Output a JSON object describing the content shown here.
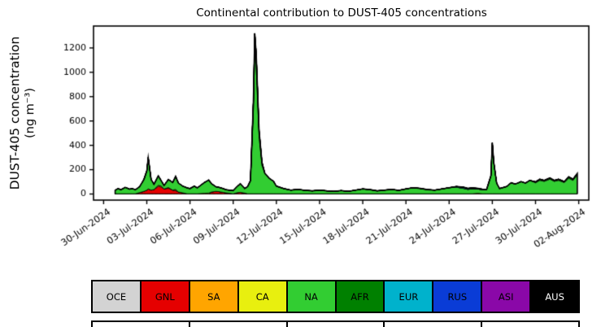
{
  "chart_data": {
    "type": "area",
    "stacked": true,
    "title": "Continental contribution to DUST-405 concentrations",
    "ylabel_line1": "DUST-405 concentration",
    "ylabel_line2": "(ng m⁻³)",
    "ylabel": "DUST-405 concentration (ng m⁻³)",
    "xlabel": "",
    "legend_position": "bottom",
    "grid": false,
    "outline_color": "#000000",
    "x_unit": "days since 30-Jun-2024",
    "xlim": [
      -0.7,
      33.7
    ],
    "ylim": [
      -50,
      1380
    ],
    "yticks": [
      0,
      200,
      400,
      600,
      800,
      1000,
      1200
    ],
    "xticks": [
      0,
      3,
      6,
      9,
      12,
      15,
      18,
      21,
      24,
      27,
      30,
      33
    ],
    "xticklabels": [
      "30-Jun-2024",
      "03-Jul-2024",
      "06-Jul-2024",
      "09-Jul-2024",
      "12-Jul-2024",
      "15-Jul-2024",
      "18-Jul-2024",
      "21-Jul-2024",
      "24-Jul-2024",
      "27-Jul-2024",
      "30-Jul-2024",
      "02-Aug-2024"
    ],
    "x": [
      0.8,
      1,
      1.2,
      1.5,
      1.8,
      2,
      2.2,
      2.5,
      2.8,
      3,
      3.1,
      3.3,
      3.5,
      3.8,
      4,
      4.2,
      4.5,
      4.8,
      5,
      5.2,
      5.5,
      5.8,
      6,
      6.3,
      6.5,
      7,
      7.3,
      7.5,
      7.8,
      8,
      8.3,
      8.5,
      9,
      9.3,
      9.5,
      9.8,
      10,
      10.2,
      10.4,
      10.5,
      10.6,
      10.8,
      11,
      11.2,
      11.5,
      11.8,
      12,
      12.5,
      13,
      13.5,
      14,
      14.5,
      15,
      15.5,
      16,
      16.5,
      17,
      17.5,
      18,
      18.5,
      19,
      19.5,
      20,
      20.5,
      21,
      21.5,
      22,
      22.5,
      23,
      23.5,
      24,
      24.5,
      25,
      25.3,
      25.6,
      26,
      26.3,
      26.6,
      26.9,
      27,
      27.1,
      27.3,
      27.5,
      28,
      28.3,
      28.6,
      29,
      29.3,
      29.6,
      30,
      30.3,
      30.6,
      31,
      31.3,
      31.6,
      32,
      32.3,
      32.6,
      32.9
    ],
    "series": [
      {
        "name": "OCE",
        "color": "#d3d3d3",
        "label_color": "#000000",
        "values": [
          2,
          2,
          2,
          2,
          2,
          2,
          2,
          2,
          2,
          2,
          2,
          2,
          2,
          2,
          2,
          2,
          2,
          2,
          2,
          2,
          2,
          2,
          2,
          2,
          2,
          2,
          2,
          2,
          2,
          2,
          2,
          2,
          2,
          2,
          2,
          2,
          2,
          2,
          2,
          2,
          2,
          2,
          2,
          2,
          2,
          2,
          2,
          2,
          2,
          2,
          2,
          2,
          2,
          2,
          2,
          2,
          2,
          2,
          2,
          2,
          2,
          2,
          2,
          2,
          2,
          2,
          2,
          2,
          2,
          2,
          2,
          2,
          2,
          2,
          2,
          2,
          2,
          2,
          2,
          2,
          2,
          2,
          2,
          2,
          2,
          2,
          2,
          2,
          2,
          2,
          2,
          2,
          2,
          2,
          2,
          2,
          2,
          2,
          2
        ]
      },
      {
        "name": "GNL",
        "color": "#e50000",
        "label_color": "#000000",
        "values": [
          0,
          0,
          0,
          0,
          0,
          0,
          0,
          10,
          20,
          30,
          40,
          30,
          35,
          60,
          55,
          40,
          45,
          30,
          25,
          15,
          8,
          0,
          0,
          0,
          0,
          0,
          0,
          15,
          20,
          18,
          12,
          8,
          0,
          10,
          12,
          6,
          0,
          0,
          0,
          0,
          0,
          0,
          0,
          0,
          0,
          0,
          0,
          0,
          0,
          0,
          0,
          0,
          0,
          0,
          0,
          0,
          0,
          0,
          0,
          0,
          0,
          0,
          0,
          0,
          0,
          0,
          0,
          0,
          0,
          0,
          0,
          0,
          0,
          0,
          0,
          0,
          0,
          0,
          0,
          0,
          0,
          0,
          0,
          0,
          0,
          0,
          0,
          0,
          0,
          0,
          0,
          0,
          0,
          0,
          0,
          0,
          0,
          0,
          0
        ]
      },
      {
        "name": "SA",
        "color": "#ffa500",
        "label_color": "#000000",
        "values": [
          0,
          0,
          0,
          0,
          0,
          0,
          0,
          0,
          0,
          0,
          0,
          0,
          0,
          10,
          8,
          0,
          6,
          0,
          5,
          0,
          0,
          0,
          0,
          0,
          0,
          0,
          0,
          0,
          0,
          0,
          0,
          0,
          0,
          0,
          0,
          0,
          0,
          0,
          0,
          0,
          0,
          0,
          0,
          0,
          0,
          0,
          0,
          0,
          0,
          0,
          0,
          0,
          0,
          0,
          0,
          0,
          0,
          0,
          0,
          0,
          0,
          0,
          0,
          0,
          0,
          0,
          0,
          0,
          0,
          0,
          0,
          0,
          0,
          0,
          0,
          0,
          0,
          0,
          0,
          0,
          0,
          0,
          0,
          0,
          0,
          0,
          0,
          0,
          0,
          0,
          0,
          0,
          0,
          0,
          0,
          0,
          0,
          0,
          0
        ]
      },
      {
        "name": "CA",
        "color": "#e8ef0f",
        "label_color": "#000000",
        "values": [
          0,
          0,
          0,
          0,
          0,
          0,
          0,
          0,
          0,
          0,
          0,
          0,
          0,
          0,
          0,
          0,
          0,
          0,
          6,
          0,
          0,
          0,
          0,
          0,
          0,
          4,
          6,
          0,
          0,
          0,
          0,
          0,
          0,
          0,
          0,
          0,
          0,
          0,
          0,
          0,
          0,
          0,
          0,
          0,
          0,
          0,
          0,
          0,
          0,
          0,
          0,
          0,
          0,
          0,
          0,
          0,
          0,
          0,
          0,
          0,
          0,
          0,
          0,
          0,
          0,
          0,
          0,
          0,
          0,
          0,
          0,
          0,
          0,
          0,
          0,
          4,
          0,
          0,
          0,
          0,
          0,
          0,
          0,
          0,
          0,
          0,
          0,
          0,
          0,
          0,
          0,
          0,
          0,
          0,
          0,
          0,
          0,
          0,
          0
        ]
      },
      {
        "name": "NA",
        "color": "#32cd32",
        "label_color": "#000000",
        "values": [
          28,
          43,
          33,
          53,
          38,
          43,
          33,
          48,
          98,
          158,
          258,
          88,
          43,
          78,
          45,
          28,
          67,
          63,
          107,
          73,
          55,
          48,
          43,
          63,
          48,
          89,
          107,
          68,
          38,
          35,
          31,
          25,
          26,
          53,
          71,
          37,
          58,
          108,
          668,
          1188,
          1038,
          468,
          233,
          168,
          128,
          103,
          63,
          43,
          30,
          36,
          28,
          24,
          30,
          24,
          20,
          26,
          20,
          30,
          40,
          34,
          24,
          30,
          36,
          28,
          40,
          50,
          44,
          34,
          30,
          40,
          50,
          54,
          44,
          36,
          41,
          35,
          34,
          34,
          148,
          418,
          258,
          88,
          43,
          60,
          90,
          80,
          100,
          88,
          110,
          90,
          110,
          102,
          120,
          102,
          110,
          92,
          128,
          110,
          153
        ]
      },
      {
        "name": "AFR",
        "color": "#008000",
        "label_color": "#000000",
        "values": [
          0,
          0,
          0,
          0,
          0,
          0,
          0,
          0,
          0,
          0,
          0,
          0,
          0,
          0,
          0,
          0,
          0,
          0,
          0,
          0,
          0,
          0,
          0,
          0,
          0,
          0,
          0,
          0,
          0,
          0,
          0,
          0,
          0,
          0,
          0,
          0,
          0,
          0,
          80,
          130,
          110,
          50,
          25,
          0,
          0,
          0,
          0,
          0,
          0,
          0,
          0,
          0,
          0,
          0,
          0,
          0,
          0,
          0,
          0,
          0,
          0,
          0,
          0,
          0,
          0,
          0,
          0,
          0,
          0,
          0,
          0,
          0,
          0,
          0,
          0,
          0,
          0,
          0,
          0,
          0,
          0,
          0,
          0,
          0,
          0,
          0,
          0,
          0,
          0,
          8,
          10,
          8,
          10,
          8,
          10,
          8,
          12,
          10,
          15
        ]
      },
      {
        "name": "EUR",
        "color": "#00b2cc",
        "label_color": "#000000",
        "values": [
          0,
          0,
          0,
          0,
          0,
          0,
          0,
          0,
          0,
          0,
          0,
          0,
          0,
          0,
          0,
          0,
          0,
          0,
          0,
          0,
          0,
          0,
          0,
          0,
          0,
          0,
          0,
          0,
          0,
          0,
          0,
          0,
          0,
          0,
          0,
          0,
          0,
          0,
          0,
          0,
          0,
          0,
          0,
          0,
          0,
          0,
          0,
          0,
          0,
          0,
          0,
          0,
          0,
          0,
          0,
          0,
          0,
          0,
          0,
          0,
          0,
          0,
          0,
          0,
          0,
          0,
          0,
          0,
          0,
          0,
          0,
          6,
          10,
          8,
          5,
          0,
          0,
          0,
          0,
          0,
          0,
          0,
          0,
          0,
          0,
          0,
          0,
          0,
          0,
          0,
          0,
          0,
          0,
          0,
          0,
          0,
          0,
          0,
          0
        ]
      },
      {
        "name": "RUS",
        "color": "#0a3cd6",
        "label_color": "#000000",
        "values": [
          0,
          0,
          0,
          0,
          0,
          0,
          0,
          0,
          0,
          0,
          0,
          0,
          0,
          0,
          0,
          0,
          0,
          0,
          0,
          0,
          0,
          0,
          0,
          0,
          0,
          0,
          0,
          0,
          0,
          0,
          0,
          0,
          0,
          0,
          0,
          0,
          0,
          0,
          0,
          0,
          0,
          0,
          0,
          0,
          0,
          0,
          0,
          0,
          0,
          0,
          0,
          0,
          0,
          0,
          0,
          0,
          0,
          0,
          0,
          0,
          0,
          0,
          0,
          0,
          0,
          0,
          0,
          0,
          0,
          0,
          0,
          0,
          0,
          0,
          4,
          5,
          4,
          0,
          0,
          0,
          0,
          0,
          0,
          0,
          0,
          0,
          0,
          0,
          0,
          0,
          0,
          0,
          0,
          0,
          0,
          0,
          0,
          0,
          0
        ]
      },
      {
        "name": "ASI",
        "color": "#8a08a8",
        "label_color": "#000000",
        "values": [
          0,
          0,
          0,
          0,
          0,
          0,
          0,
          0,
          0,
          0,
          0,
          0,
          0,
          0,
          0,
          0,
          0,
          0,
          0,
          0,
          0,
          0,
          0,
          0,
          0,
          0,
          0,
          0,
          0,
          0,
          0,
          0,
          0,
          0,
          0,
          0,
          0,
          0,
          0,
          0,
          0,
          0,
          0,
          0,
          0,
          0,
          0,
          0,
          0,
          0,
          0,
          0,
          0,
          0,
          0,
          0,
          0,
          0,
          0,
          0,
          0,
          0,
          0,
          0,
          0,
          0,
          0,
          0,
          0,
          0,
          0,
          0,
          0,
          0,
          0,
          0,
          0,
          0,
          0,
          0,
          0,
          0,
          0,
          0,
          0,
          0,
          0,
          0,
          0,
          0,
          0,
          0,
          0,
          0,
          0,
          0,
          0,
          0,
          0
        ]
      },
      {
        "name": "AUS",
        "color": "#000000",
        "label_color": "#ffffff",
        "values": [
          0,
          0,
          0,
          0,
          0,
          0,
          0,
          0,
          0,
          0,
          0,
          0,
          0,
          0,
          0,
          0,
          0,
          0,
          0,
          0,
          0,
          0,
          0,
          0,
          0,
          0,
          0,
          0,
          0,
          0,
          0,
          0,
          0,
          0,
          0,
          0,
          0,
          0,
          0,
          0,
          0,
          0,
          0,
          0,
          0,
          0,
          0,
          0,
          0,
          0,
          0,
          0,
          0,
          0,
          0,
          0,
          0,
          0,
          0,
          0,
          0,
          0,
          0,
          0,
          0,
          0,
          0,
          0,
          0,
          0,
          0,
          0,
          0,
          0,
          0,
          0,
          0,
          0,
          0,
          0,
          0,
          0,
          0,
          0,
          0,
          0,
          0,
          0,
          0,
          0,
          0,
          0,
          0,
          0,
          0,
          0,
          0,
          0,
          0
        ]
      }
    ]
  }
}
